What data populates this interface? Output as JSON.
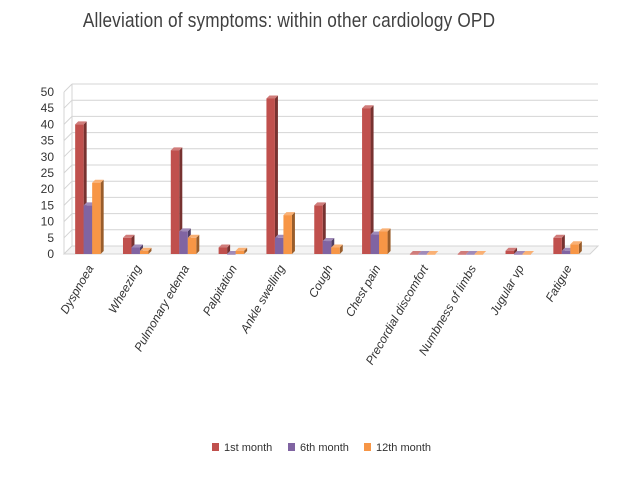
{
  "chart_data": {
    "type": "bar",
    "title": "Alleviation of symptoms: within other cardiology OPD",
    "categories": [
      "Dyspnoea",
      "Wheezing",
      "Pulmonary edema",
      "Palpitation",
      "Ankle swelling",
      "Cough",
      "Chest pain",
      "Precordial discomfort",
      "Numbness of limbs",
      "Jugular vp",
      "Fatigue"
    ],
    "series": [
      {
        "name": "1st month",
        "color": "#c0504d",
        "values": [
          40,
          5,
          32,
          2,
          48,
          15,
          45,
          0,
          0,
          1,
          5
        ]
      },
      {
        "name": "6th month",
        "color": "#8064a2",
        "values": [
          15,
          2,
          7,
          0,
          5,
          4,
          6,
          0,
          0,
          0,
          1
        ]
      },
      {
        "name": "12th month",
        "color": "#f79646",
        "values": [
          22,
          1,
          5,
          1,
          12,
          2,
          7,
          0,
          0,
          0,
          3
        ]
      }
    ],
    "ylim": [
      0,
      50
    ],
    "yticks": [
      0,
      5,
      10,
      15,
      20,
      25,
      30,
      35,
      40,
      45,
      50
    ],
    "grid": true,
    "legend": "bottom",
    "style": "3d-clustered-column"
  }
}
